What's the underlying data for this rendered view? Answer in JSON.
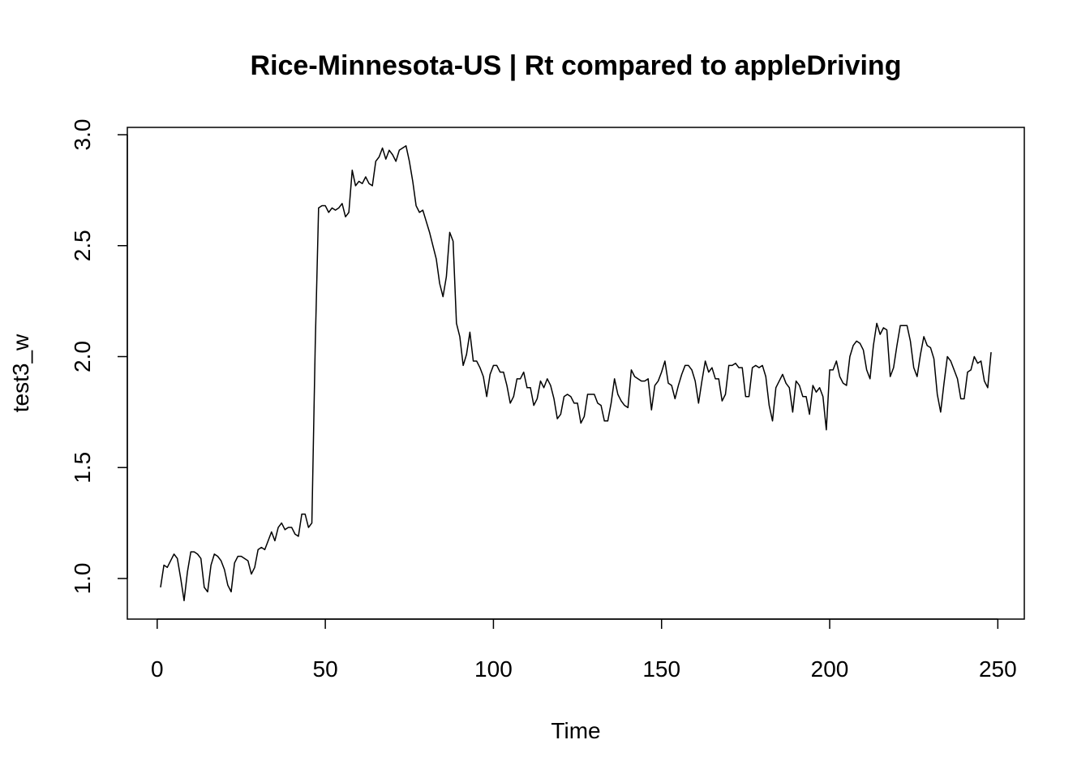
{
  "chart_data": {
    "type": "line",
    "title": "Rice-Minnesota-US | Rt compared to appleDriving",
    "xlabel": "Time",
    "ylabel": "test3_w",
    "color": "#000000",
    "x": [
      1,
      2,
      3,
      4,
      5,
      6,
      7,
      8,
      9,
      10,
      11,
      12,
      13,
      14,
      15,
      16,
      17,
      18,
      19,
      20,
      21,
      22,
      23,
      24,
      25,
      26,
      27,
      28,
      29,
      30,
      31,
      32,
      33,
      34,
      35,
      36,
      37,
      38,
      39,
      40,
      41,
      42,
      43,
      44,
      45,
      46,
      47,
      48,
      49,
      50,
      51,
      52,
      53,
      54,
      55,
      56,
      57,
      58,
      59,
      60,
      61,
      62,
      63,
      64,
      65,
      66,
      67,
      68,
      69,
      70,
      71,
      72,
      73,
      74,
      75,
      76,
      77,
      78,
      79,
      80,
      81,
      82,
      83,
      84,
      85,
      86,
      87,
      88,
      89,
      90,
      91,
      92,
      93,
      94,
      95,
      96,
      97,
      98,
      99,
      100,
      101,
      102,
      103,
      104,
      105,
      106,
      107,
      108,
      109,
      110,
      111,
      112,
      113,
      114,
      115,
      116,
      117,
      118,
      119,
      120,
      121,
      122,
      123,
      124,
      125,
      126,
      127,
      128,
      129,
      130,
      131,
      132,
      133,
      134,
      135,
      136,
      137,
      138,
      139,
      140,
      141,
      142,
      143,
      144,
      145,
      146,
      147,
      148,
      149,
      150,
      151,
      152,
      153,
      154,
      155,
      156,
      157,
      158,
      159,
      160,
      161,
      162,
      163,
      164,
      165,
      166,
      167,
      168,
      169,
      170,
      171,
      172,
      173,
      174,
      175,
      176,
      177,
      178,
      179,
      180,
      181,
      182,
      183,
      184,
      185,
      186,
      187,
      188,
      189,
      190,
      191,
      192,
      193,
      194,
      195,
      196,
      197,
      198,
      199,
      200,
      201,
      202,
      203,
      204,
      205,
      206,
      207,
      208,
      209,
      210,
      211,
      212,
      213,
      214,
      215,
      216,
      217,
      218,
      219,
      220,
      221,
      222,
      223,
      224,
      225,
      226,
      227,
      228,
      229,
      230,
      231,
      232,
      233,
      234,
      235,
      236,
      237,
      238,
      239,
      240,
      241,
      242,
      243,
      244,
      245,
      246,
      247,
      248
    ],
    "values": [
      0.96,
      1.06,
      1.05,
      1.08,
      1.11,
      1.09,
      1.0,
      0.9,
      1.03,
      1.12,
      1.12,
      1.11,
      1.09,
      0.96,
      0.94,
      1.06,
      1.11,
      1.1,
      1.08,
      1.04,
      0.97,
      0.94,
      1.07,
      1.1,
      1.1,
      1.09,
      1.08,
      1.02,
      1.05,
      1.13,
      1.14,
      1.13,
      1.17,
      1.21,
      1.17,
      1.23,
      1.25,
      1.22,
      1.23,
      1.23,
      1.2,
      1.19,
      1.29,
      1.29,
      1.23,
      1.25,
      2.05,
      2.67,
      2.68,
      2.68,
      2.65,
      2.67,
      2.66,
      2.67,
      2.69,
      2.63,
      2.65,
      2.84,
      2.77,
      2.79,
      2.78,
      2.81,
      2.78,
      2.77,
      2.88,
      2.9,
      2.94,
      2.89,
      2.93,
      2.91,
      2.88,
      2.93,
      2.94,
      2.95,
      2.88,
      2.79,
      2.68,
      2.65,
      2.66,
      2.61,
      2.56,
      2.5,
      2.44,
      2.33,
      2.27,
      2.36,
      2.56,
      2.52,
      2.15,
      2.09,
      1.96,
      2.01,
      2.11,
      1.98,
      1.98,
      1.95,
      1.91,
      1.82,
      1.92,
      1.96,
      1.96,
      1.93,
      1.93,
      1.87,
      1.79,
      1.82,
      1.9,
      1.9,
      1.93,
      1.86,
      1.86,
      1.78,
      1.81,
      1.89,
      1.86,
      1.9,
      1.87,
      1.81,
      1.72,
      1.74,
      1.82,
      1.83,
      1.82,
      1.79,
      1.79,
      1.7,
      1.73,
      1.83,
      1.83,
      1.83,
      1.79,
      1.78,
      1.71,
      1.71,
      1.79,
      1.9,
      1.83,
      1.8,
      1.78,
      1.77,
      1.94,
      1.91,
      1.9,
      1.89,
      1.89,
      1.9,
      1.76,
      1.87,
      1.89,
      1.93,
      1.98,
      1.88,
      1.87,
      1.81,
      1.87,
      1.92,
      1.96,
      1.96,
      1.94,
      1.89,
      1.79,
      1.89,
      1.98,
      1.93,
      1.95,
      1.9,
      1.9,
      1.8,
      1.83,
      1.96,
      1.96,
      1.97,
      1.95,
      1.95,
      1.82,
      1.82,
      1.95,
      1.96,
      1.95,
      1.96,
      1.91,
      1.78,
      1.71,
      1.86,
      1.89,
      1.92,
      1.88,
      1.86,
      1.75,
      1.89,
      1.87,
      1.82,
      1.82,
      1.74,
      1.87,
      1.84,
      1.86,
      1.82,
      1.67,
      1.94,
      1.94,
      1.98,
      1.91,
      1.88,
      1.87,
      2.0,
      2.05,
      2.07,
      2.06,
      2.03,
      1.94,
      1.9,
      2.05,
      2.15,
      2.1,
      2.13,
      2.12,
      1.91,
      1.95,
      2.05,
      2.14,
      2.14,
      2.14,
      2.07,
      1.95,
      1.91,
      2.01,
      2.09,
      2.05,
      2.04,
      1.99,
      1.83,
      1.75,
      1.88,
      2.0,
      1.98,
      1.94,
      1.9,
      1.81,
      1.81,
      1.93,
      1.94,
      2.0,
      1.97,
      1.98,
      1.89,
      1.86,
      2.02
    ],
    "xlim": [
      -8.88,
      257.88
    ],
    "xticks": [
      0,
      50,
      100,
      150,
      200,
      250
    ],
    "ylim": [
      0.817,
      3.033
    ],
    "yticks": [
      {
        "value": 1,
        "label": "1.0"
      },
      1.5,
      {
        "value": 2,
        "label": "2.0"
      },
      2.5,
      {
        "value": 3,
        "label": "3.0"
      }
    ]
  }
}
